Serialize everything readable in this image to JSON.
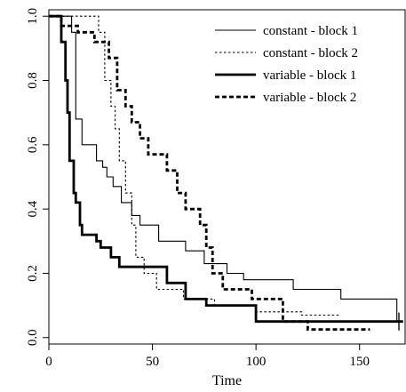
{
  "chart_data": {
    "type": "line",
    "title": "",
    "xlabel": "Time",
    "ylabel": "",
    "xlim": [
      0,
      172
    ],
    "ylim": [
      -0.02,
      1.02
    ],
    "x_ticks": [
      0,
      50,
      100,
      150
    ],
    "y_ticks": [
      0.0,
      0.2,
      0.4,
      0.6,
      0.8,
      1.0
    ],
    "x_tick_labels": [
      "0",
      "50",
      "100",
      "150"
    ],
    "y_tick_labels": [
      "0.0",
      "0.2",
      "0.4",
      "0.6",
      "0.8",
      "1.0"
    ],
    "grid": false,
    "legend_position": "top-right",
    "series": [
      {
        "name": "constant - block 1",
        "style": "solid-thin",
        "color": "#000000",
        "points": [
          [
            0,
            1.0
          ],
          [
            11,
            1.0
          ],
          [
            11,
            0.95
          ],
          [
            13,
            0.95
          ],
          [
            13,
            0.68
          ],
          [
            16,
            0.68
          ],
          [
            16,
            0.6
          ],
          [
            23,
            0.6
          ],
          [
            23,
            0.55
          ],
          [
            26,
            0.55
          ],
          [
            26,
            0.53
          ],
          [
            28,
            0.53
          ],
          [
            28,
            0.5
          ],
          [
            31,
            0.5
          ],
          [
            31,
            0.47
          ],
          [
            35,
            0.47
          ],
          [
            35,
            0.42
          ],
          [
            40,
            0.42
          ],
          [
            40,
            0.38
          ],
          [
            44,
            0.38
          ],
          [
            44,
            0.35
          ],
          [
            53,
            0.35
          ],
          [
            53,
            0.3
          ],
          [
            66,
            0.3
          ],
          [
            66,
            0.27
          ],
          [
            75,
            0.27
          ],
          [
            75,
            0.23
          ],
          [
            86,
            0.23
          ],
          [
            86,
            0.2
          ],
          [
            94,
            0.2
          ],
          [
            94,
            0.18
          ],
          [
            118,
            0.18
          ],
          [
            118,
            0.15
          ],
          [
            141,
            0.15
          ],
          [
            141,
            0.12
          ],
          [
            168,
            0.12
          ],
          [
            168,
            0.05
          ],
          [
            171,
            0.05
          ]
        ],
        "censor_marks": [
          [
            169,
            0.05
          ]
        ]
      },
      {
        "name": "constant - block 2",
        "style": "dotted-thin",
        "color": "#000000",
        "points": [
          [
            0,
            1.0
          ],
          [
            24,
            1.0
          ],
          [
            24,
            0.95
          ],
          [
            27,
            0.95
          ],
          [
            27,
            0.8
          ],
          [
            30,
            0.8
          ],
          [
            30,
            0.72
          ],
          [
            32,
            0.72
          ],
          [
            32,
            0.65
          ],
          [
            34,
            0.65
          ],
          [
            34,
            0.55
          ],
          [
            37,
            0.55
          ],
          [
            37,
            0.45
          ],
          [
            40,
            0.45
          ],
          [
            40,
            0.35
          ],
          [
            42,
            0.35
          ],
          [
            42,
            0.25
          ],
          [
            46,
            0.25
          ],
          [
            46,
            0.2
          ],
          [
            52,
            0.2
          ],
          [
            52,
            0.15
          ],
          [
            65,
            0.15
          ],
          [
            65,
            0.12
          ],
          [
            80,
            0.12
          ],
          [
            80,
            0.1
          ],
          [
            100,
            0.1
          ],
          [
            100,
            0.08
          ],
          [
            122,
            0.08
          ],
          [
            122,
            0.07
          ],
          [
            141,
            0.07
          ]
        ],
        "censor_marks": []
      },
      {
        "name": "variable - block 1",
        "style": "solid-thick",
        "color": "#000000",
        "points": [
          [
            0,
            1.0
          ],
          [
            6,
            1.0
          ],
          [
            6,
            0.92
          ],
          [
            8,
            0.92
          ],
          [
            8,
            0.8
          ],
          [
            9,
            0.8
          ],
          [
            9,
            0.7
          ],
          [
            10,
            0.7
          ],
          [
            10,
            0.55
          ],
          [
            12,
            0.55
          ],
          [
            12,
            0.45
          ],
          [
            13,
            0.45
          ],
          [
            13,
            0.42
          ],
          [
            15,
            0.42
          ],
          [
            15,
            0.35
          ],
          [
            16,
            0.35
          ],
          [
            16,
            0.32
          ],
          [
            23,
            0.32
          ],
          [
            23,
            0.3
          ],
          [
            25,
            0.3
          ],
          [
            25,
            0.28
          ],
          [
            30,
            0.28
          ],
          [
            30,
            0.25
          ],
          [
            34,
            0.25
          ],
          [
            34,
            0.22
          ],
          [
            57,
            0.22
          ],
          [
            57,
            0.17
          ],
          [
            66,
            0.17
          ],
          [
            66,
            0.12
          ],
          [
            76,
            0.12
          ],
          [
            76,
            0.1
          ],
          [
            100,
            0.1
          ],
          [
            100,
            0.05
          ],
          [
            171,
            0.05
          ]
        ],
        "censor_marks": [
          [
            169,
            0.05
          ]
        ]
      },
      {
        "name": "variable - block 2",
        "style": "dashed-thick",
        "color": "#000000",
        "points": [
          [
            0,
            1.0
          ],
          [
            6,
            1.0
          ],
          [
            6,
            0.97
          ],
          [
            14,
            0.97
          ],
          [
            14,
            0.95
          ],
          [
            22,
            0.95
          ],
          [
            22,
            0.92
          ],
          [
            29,
            0.92
          ],
          [
            29,
            0.87
          ],
          [
            33,
            0.87
          ],
          [
            33,
            0.77
          ],
          [
            37,
            0.77
          ],
          [
            37,
            0.72
          ],
          [
            40,
            0.72
          ],
          [
            40,
            0.67
          ],
          [
            44,
            0.67
          ],
          [
            44,
            0.62
          ],
          [
            48,
            0.62
          ],
          [
            48,
            0.57
          ],
          [
            57,
            0.57
          ],
          [
            57,
            0.52
          ],
          [
            62,
            0.52
          ],
          [
            62,
            0.45
          ],
          [
            66,
            0.45
          ],
          [
            66,
            0.4
          ],
          [
            73,
            0.4
          ],
          [
            73,
            0.35
          ],
          [
            76,
            0.35
          ],
          [
            76,
            0.28
          ],
          [
            79,
            0.28
          ],
          [
            79,
            0.2
          ],
          [
            84,
            0.2
          ],
          [
            84,
            0.15
          ],
          [
            98,
            0.15
          ],
          [
            98,
            0.12
          ],
          [
            113,
            0.12
          ],
          [
            113,
            0.05
          ],
          [
            125,
            0.05
          ],
          [
            125,
            0.025
          ],
          [
            155,
            0.025
          ]
        ],
        "censor_marks": []
      }
    ]
  }
}
